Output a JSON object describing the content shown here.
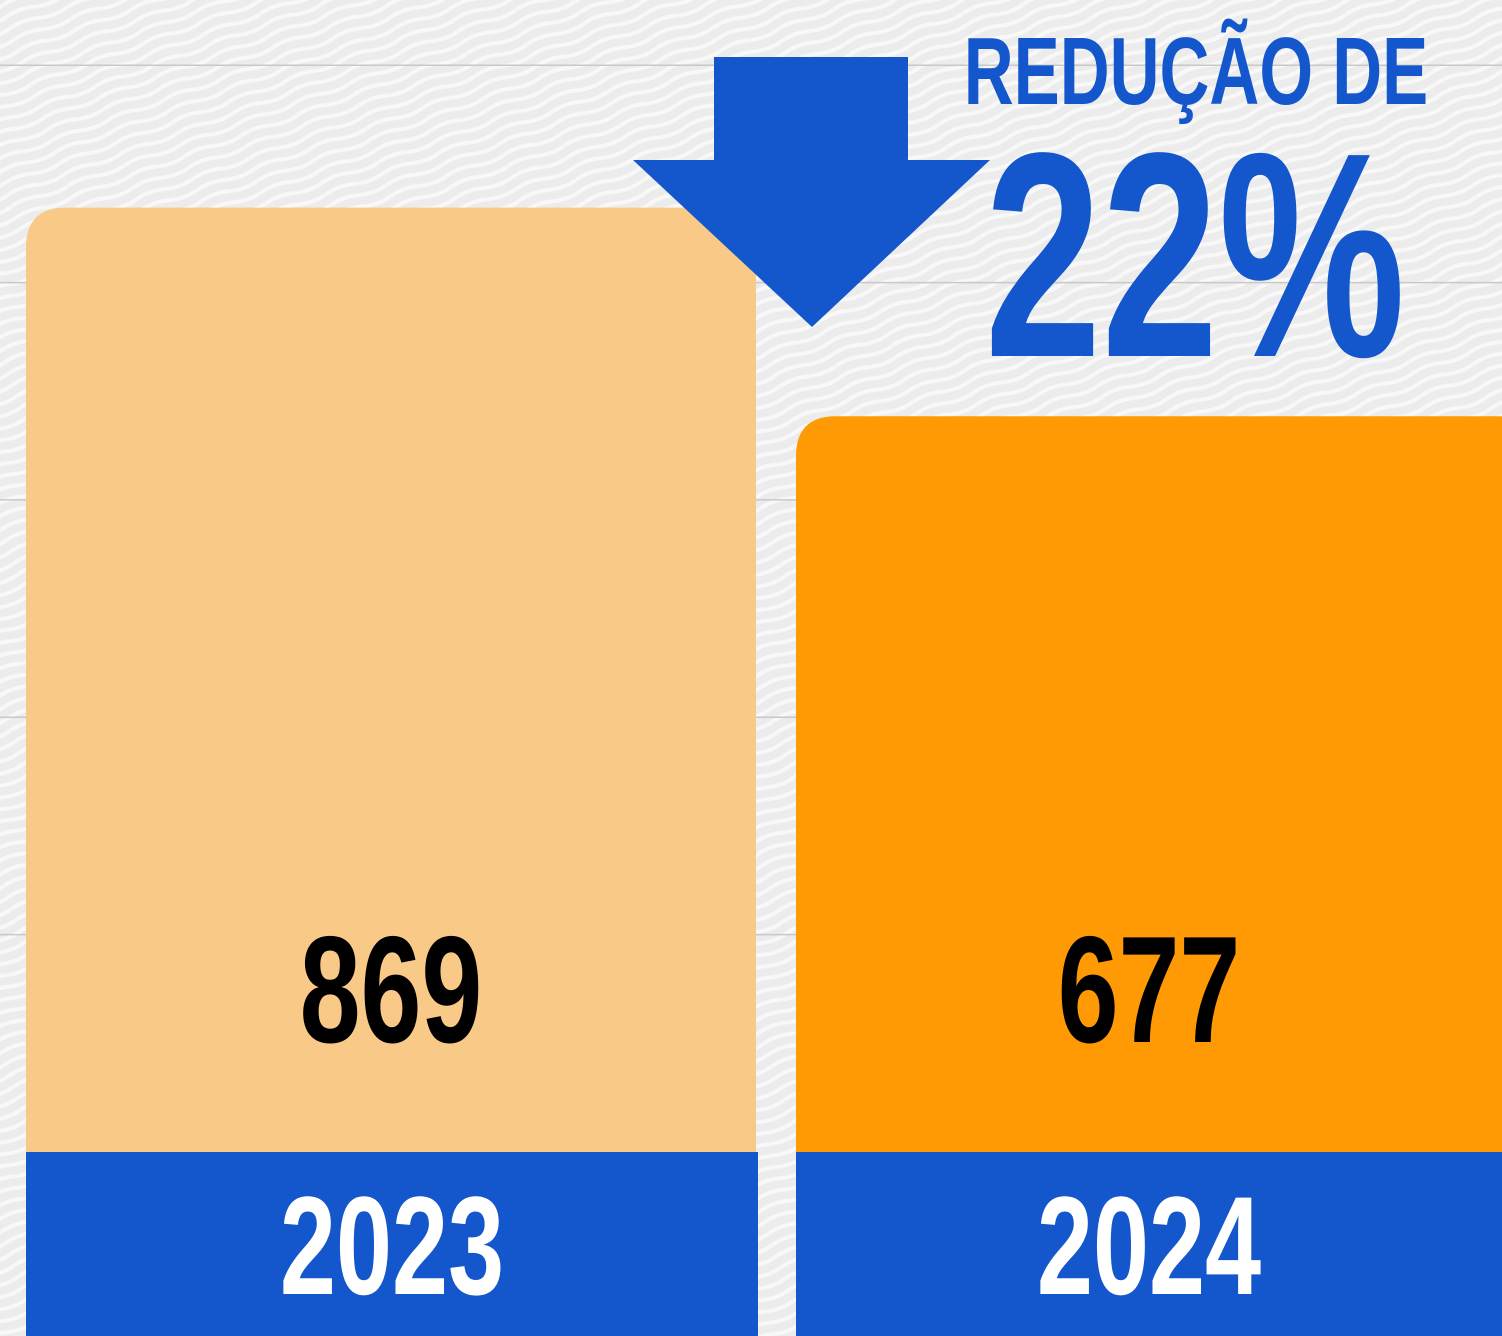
{
  "chart_data": {
    "type": "bar",
    "categories": [
      "2023",
      "2024"
    ],
    "values": [
      869,
      677
    ],
    "colors": [
      "#f9c987",
      "#ff9a05"
    ],
    "label_band_color": "#1456cc",
    "ylim": [
      0,
      1060
    ],
    "yticks": [
      200,
      400,
      600,
      800,
      1000
    ],
    "grid": true,
    "annotations": [
      "REDUÇÃO DE",
      "22%"
    ],
    "annotation_color": "#1456cc"
  }
}
